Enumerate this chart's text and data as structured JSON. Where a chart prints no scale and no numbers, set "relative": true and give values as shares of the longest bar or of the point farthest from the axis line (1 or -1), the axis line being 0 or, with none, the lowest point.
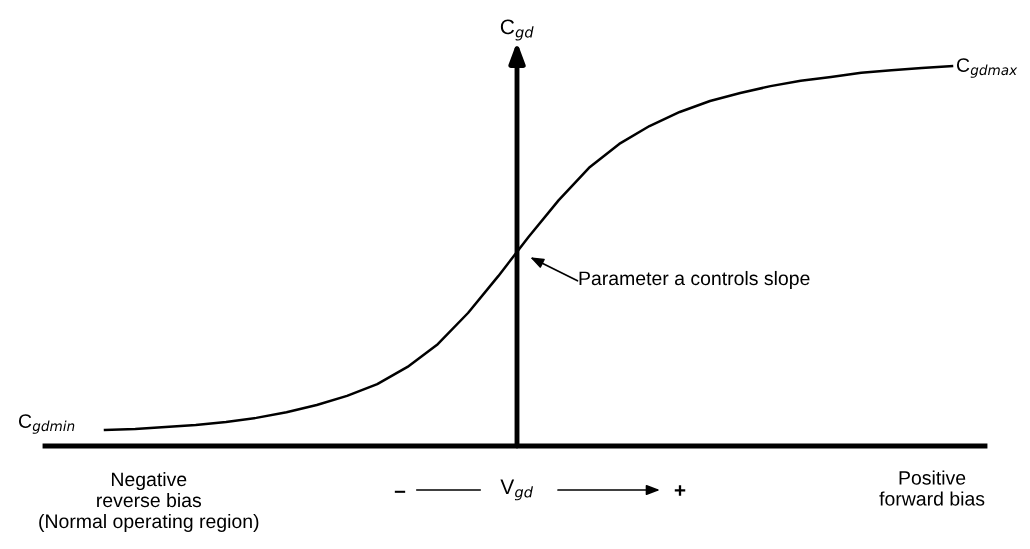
{
  "chart_data": {
    "type": "line",
    "relative": true,
    "ylabel": "C$_{gd}$",
    "xlabel": "V$_{gd}$",
    "color": "#000000",
    "marker": "none",
    "line_style": "solid",
    "categories": [
      null,
      null,
      null,
      null,
      null,
      null,
      null,
      null,
      null,
      null,
      null,
      null,
      null,
      null,
      null,
      null,
      null,
      null,
      null,
      null,
      null,
      null,
      null,
      null,
      null,
      null,
      null,
      null,
      null
    ],
    "values": [
      0.042,
      0.045,
      0.05,
      0.055,
      0.063,
      0.074,
      0.089,
      0.108,
      0.132,
      0.163,
      0.208,
      0.268,
      0.35,
      0.447,
      0.55,
      0.647,
      0.732,
      0.795,
      0.842,
      0.879,
      0.908,
      0.929,
      0.947,
      0.961,
      0.971,
      0.982,
      0.989,
      0.995,
      1
    ],
    "annotations": [
      "C$_{gdmin}$",
      "C$_{gdmax}$",
      "Parameter a controls slope",
      "Negative\nreverse bias\n(Normal operating region)",
      "Positive\nforward bias",
      "–",
      "+"
    ]
  }
}
